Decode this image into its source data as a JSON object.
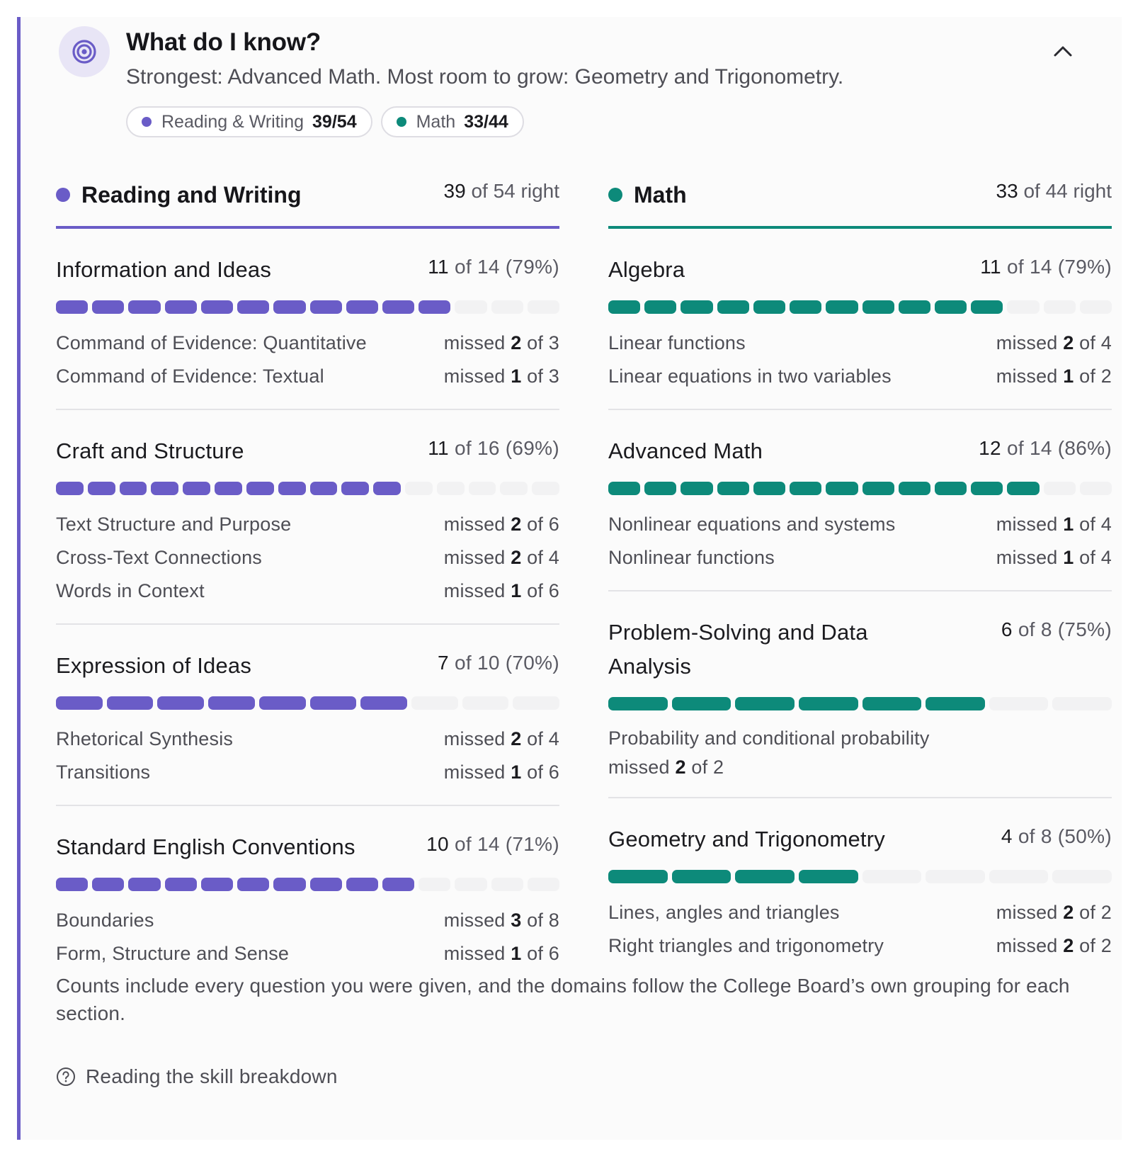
{
  "header": {
    "title": "What do I know?",
    "subtitle": "Strongest: Advanced Math. Most room to grow: Geometry and Trigonometry.",
    "icon": "target-icon",
    "collapse_icon": "chevron-up-icon"
  },
  "chips": [
    {
      "label": "Reading & Writing",
      "score": "39/54",
      "color": "#6a5cc7"
    },
    {
      "label": "Math",
      "score": "33/44",
      "color": "#0d8a7a"
    }
  ],
  "sections": [
    {
      "title": "Reading and Writing",
      "score_num": "39",
      "score_rest": " of 54 right",
      "color": "#6a5cc7",
      "domains": [
        {
          "title": "Information and Ideas",
          "score_num": "11",
          "score_rest": " of 14 (79%)",
          "correct": 11,
          "total": 14,
          "skills": [
            {
              "name": "Command of Evidence: Quantitative",
              "missed": "2",
              "of": " of 3"
            },
            {
              "name": "Command of Evidence: Textual",
              "missed": "1",
              "of": " of 3"
            }
          ]
        },
        {
          "title": "Craft and Structure",
          "score_num": "11",
          "score_rest": " of 16 (69%)",
          "correct": 11,
          "total": 16,
          "skills": [
            {
              "name": "Text Structure and Purpose",
              "missed": "2",
              "of": " of 6"
            },
            {
              "name": "Cross-Text Connections",
              "missed": "2",
              "of": " of 4"
            },
            {
              "name": "Words in Context",
              "missed": "1",
              "of": " of 6"
            }
          ]
        },
        {
          "title": "Expression of Ideas",
          "score_num": "7",
          "score_rest": " of 10 (70%)",
          "correct": 7,
          "total": 10,
          "skills": [
            {
              "name": "Rhetorical Synthesis",
              "missed": "2",
              "of": " of 4"
            },
            {
              "name": "Transitions",
              "missed": "1",
              "of": " of 6"
            }
          ]
        },
        {
          "title": "Standard English Conventions",
          "score_num": "10",
          "score_rest": " of 14 (71%)",
          "correct": 10,
          "total": 14,
          "skills": [
            {
              "name": "Boundaries",
              "missed": "3",
              "of": " of 8"
            },
            {
              "name": "Form, Structure and Sense",
              "missed": "1",
              "of": " of 6"
            }
          ]
        }
      ]
    },
    {
      "title": "Math",
      "score_num": "33",
      "score_rest": " of 44 right",
      "color": "#0d8a7a",
      "domains": [
        {
          "title": "Algebra",
          "score_num": "11",
          "score_rest": " of 14 (79%)",
          "correct": 11,
          "total": 14,
          "skills": [
            {
              "name": "Linear functions",
              "missed": "2",
              "of": " of 4"
            },
            {
              "name": "Linear equations in two variables",
              "missed": "1",
              "of": " of 2"
            }
          ]
        },
        {
          "title": "Advanced Math",
          "score_num": "12",
          "score_rest": " of 14 (86%)",
          "correct": 12,
          "total": 14,
          "skills": [
            {
              "name": "Nonlinear equations and systems",
              "missed": "1",
              "of": " of 4"
            },
            {
              "name": "Nonlinear functions",
              "missed": "1",
              "of": " of 4"
            }
          ]
        },
        {
          "title": "Problem-Solving and Data Analysis",
          "score_num": "6",
          "score_rest": " of 8 (75%)",
          "correct": 6,
          "total": 8,
          "skills": [
            {
              "name": "Probability and conditional probability",
              "missed": "2",
              "of": " of 2",
              "wrap": true
            }
          ]
        },
        {
          "title": "Geometry and Trigonometry",
          "score_num": "4",
          "score_rest": " of 8 (50%)",
          "correct": 4,
          "total": 8,
          "skills": [
            {
              "name": "Lines, angles and triangles",
              "missed": "2",
              "of": " of 2"
            },
            {
              "name": "Right triangles and trigonometry",
              "missed": "2",
              "of": " of 2"
            }
          ]
        }
      ]
    }
  ],
  "missed_word": "missed ",
  "footnote": "Counts include every question you were given, and the domains follow the College Board’s own grouping for each section.",
  "help_link": {
    "label": "Reading the skill breakdown",
    "icon": "question-circle-icon"
  }
}
